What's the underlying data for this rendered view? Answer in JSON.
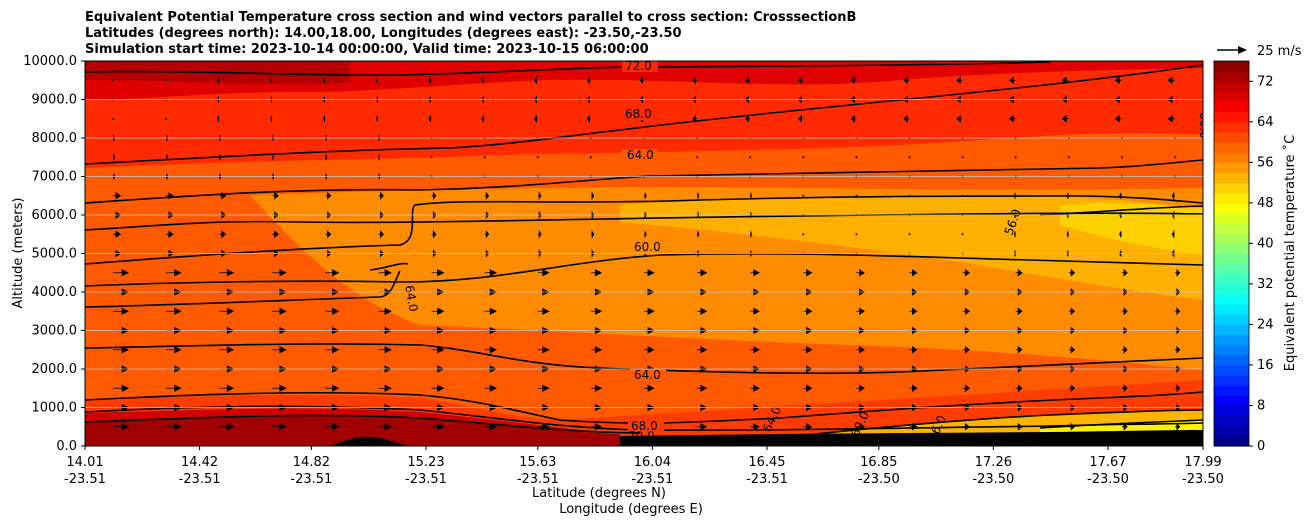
{
  "chart_data": {
    "type": "heatmap",
    "title_lines": [
      "Equivalent Potential Temperature cross section and wind vectors parallel to cross section: CrosssectionB",
      "Latitudes (degrees north): 14.00,18.00, Longitudes (degrees east): -23.50,-23.50",
      "Simulation start time: 2023-10-14 00:00:00, Valid time: 2023-10-15 06:00:00"
    ],
    "ylabel": "Altitude (meters)",
    "xlabel_lat": "Latitude (degrees N)",
    "xlabel_lon": "Longitude (degrees E)",
    "ylim": [
      0,
      10000
    ],
    "yticks": [
      "0.0",
      "1000.0",
      "2000.0",
      "3000.0",
      "4000.0",
      "5000.0",
      "6000.0",
      "7000.0",
      "8000.0",
      "9000.0",
      "10000.0"
    ],
    "xticks": [
      {
        "lat": "14.01",
        "lon": "-23.51"
      },
      {
        "lat": "14.42",
        "lon": "-23.51"
      },
      {
        "lat": "14.82",
        "lon": "-23.51"
      },
      {
        "lat": "15.23",
        "lon": "-23.51"
      },
      {
        "lat": "15.63",
        "lon": "-23.51"
      },
      {
        "lat": "16.04",
        "lon": "-23.51"
      },
      {
        "lat": "16.45",
        "lon": "-23.51"
      },
      {
        "lat": "16.85",
        "lon": "-23.50"
      },
      {
        "lat": "17.26",
        "lon": "-23.50"
      },
      {
        "lat": "17.67",
        "lon": "-23.50"
      },
      {
        "lat": "17.99",
        "lon": "-23.50"
      }
    ],
    "grid": "horizontal",
    "colorbar": {
      "label": "Equivalent potential temperature $^\\circ$C",
      "label_display": "Equivalent potential temperature ˚C",
      "ticks": [
        "0",
        "8",
        "16",
        "24",
        "32",
        "40",
        "48",
        "56",
        "64",
        "72"
      ],
      "range": [
        0,
        76
      ],
      "colormap": "jet"
    },
    "quiver_key": "25 m/s",
    "contour_labels": [
      "72.0",
      "68.0",
      "64.0",
      "60.0",
      "56.0",
      "64.0",
      "60.0",
      "64.0",
      "68.0",
      "70.0",
      "64.0",
      "60.0",
      "56.0",
      "60.0",
      "64.0"
    ],
    "field_summary": {
      "note_levels_m": [
        0,
        1000,
        2000,
        3000,
        4000,
        5000,
        6000,
        7000,
        8000,
        9000,
        10000
      ]
    }
  }
}
